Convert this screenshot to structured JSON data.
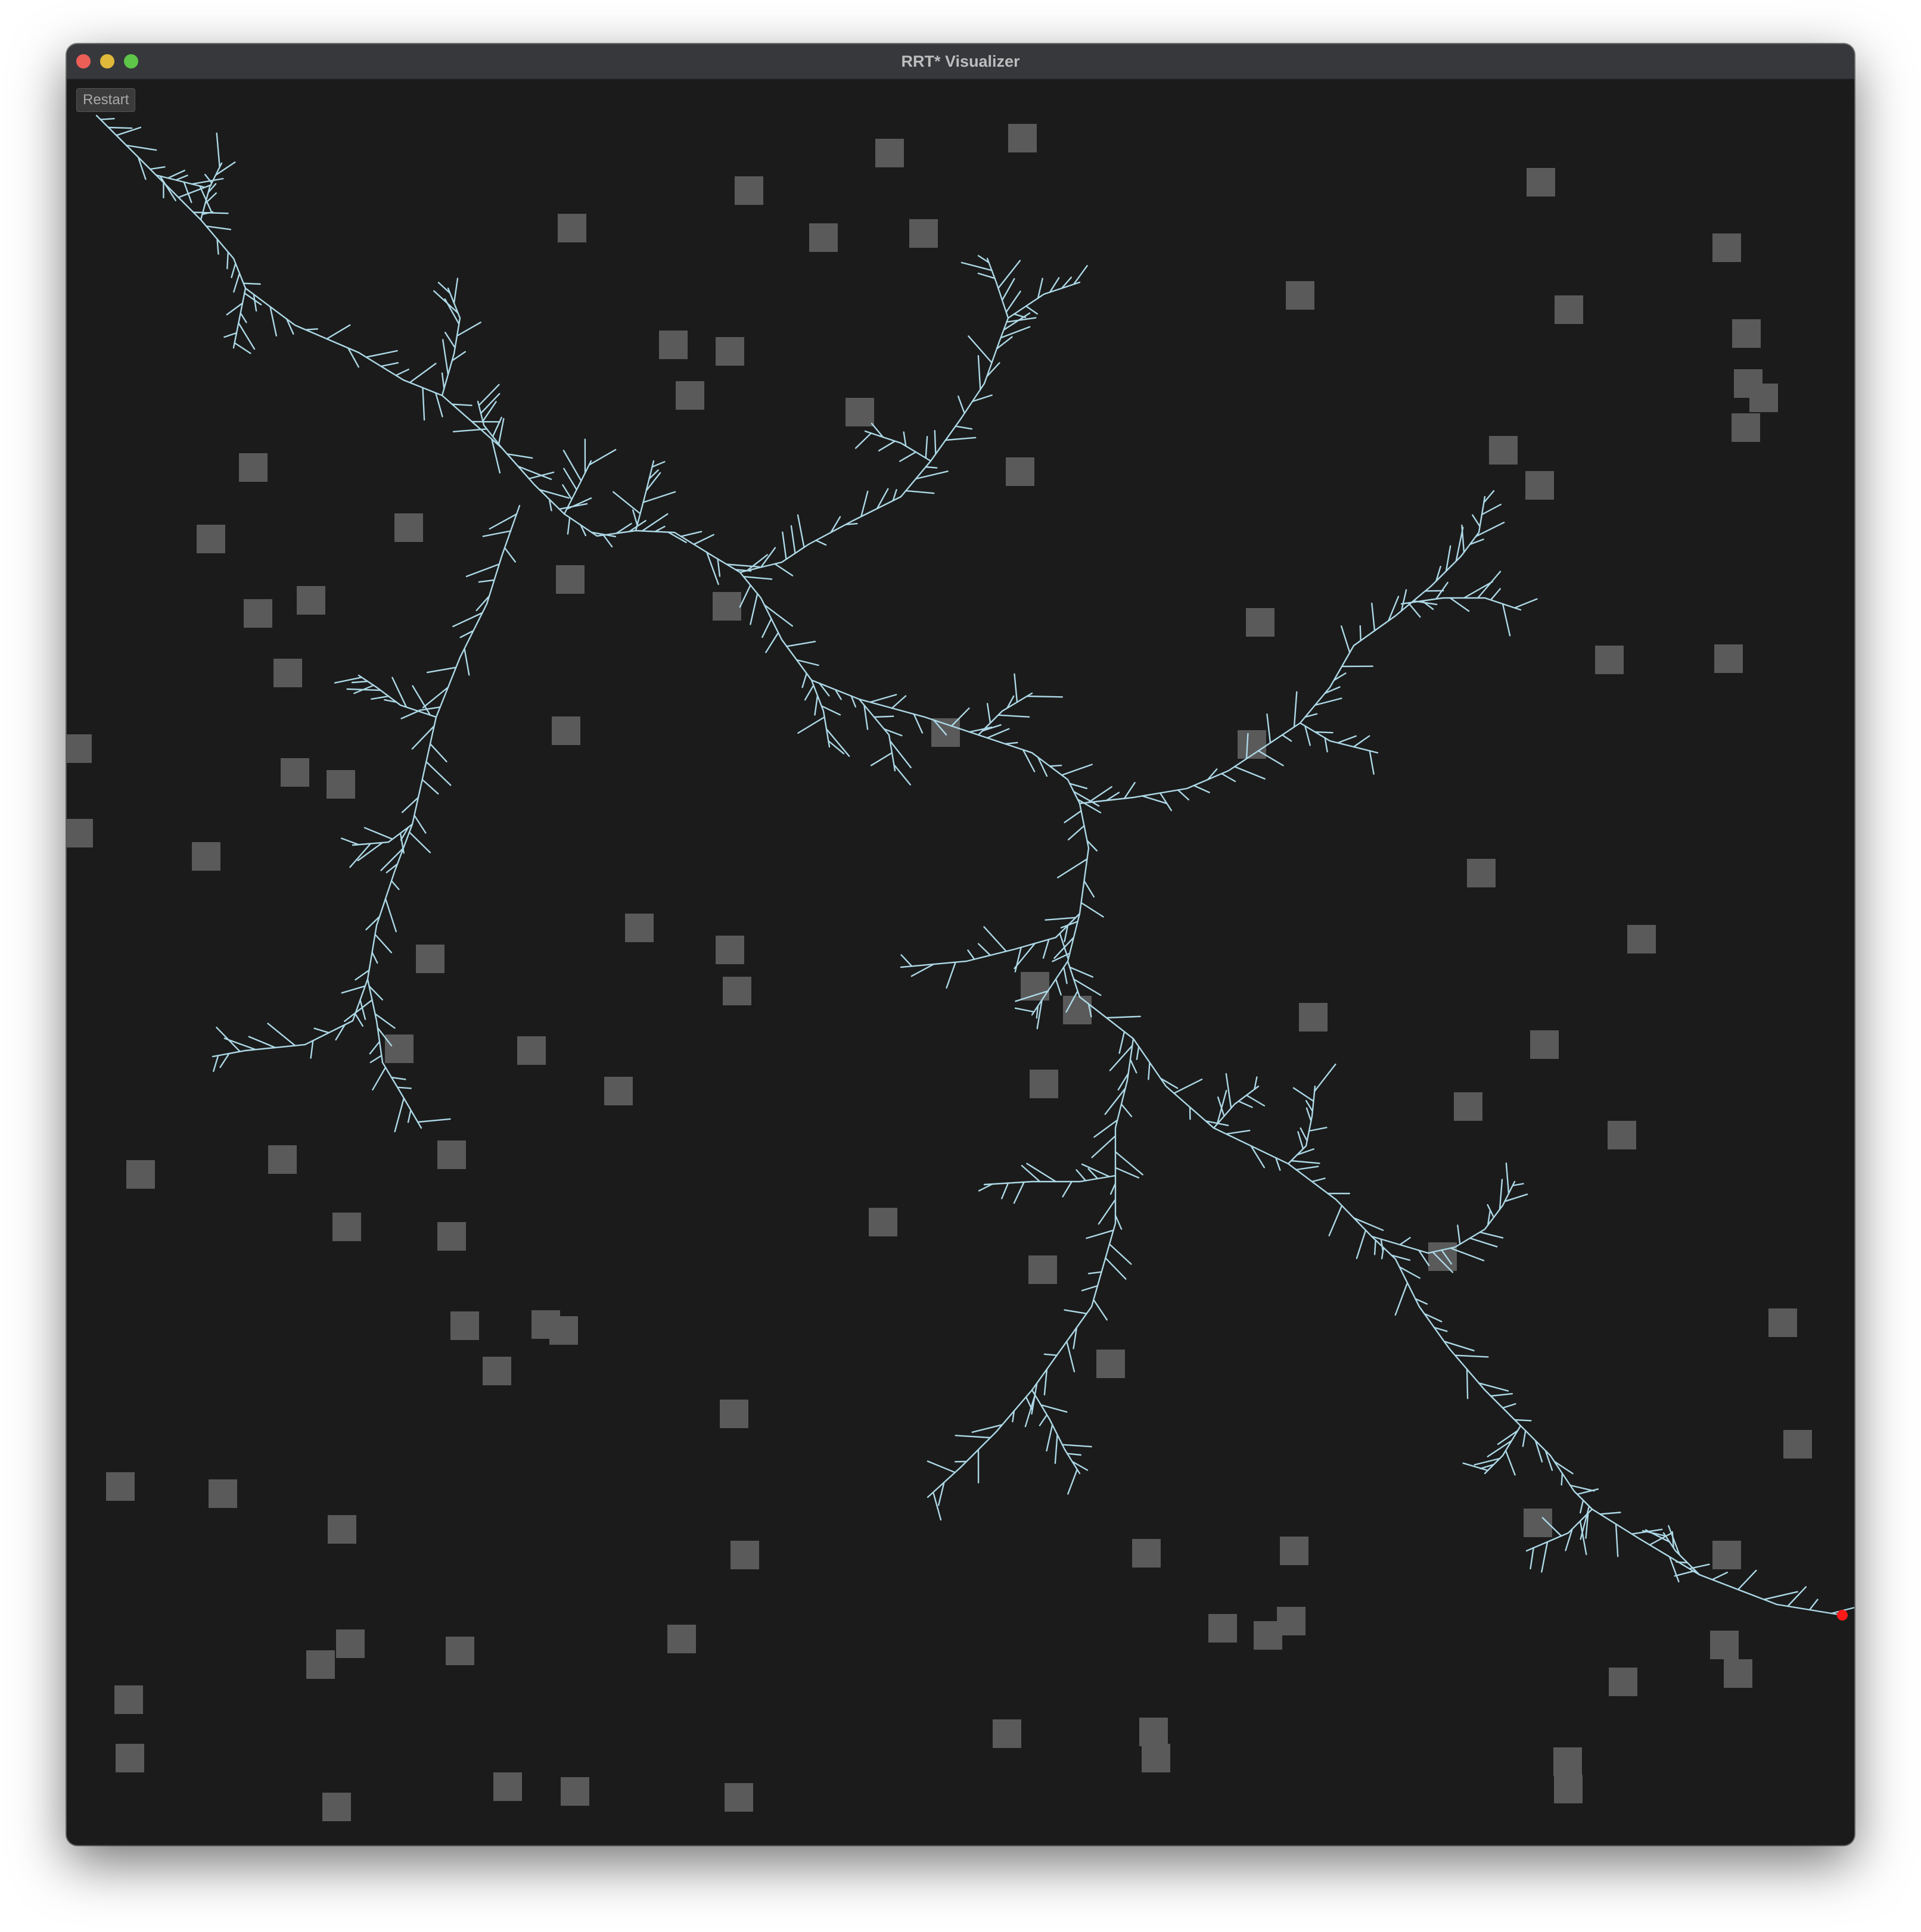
{
  "window": {
    "title": "RRT* Visualizer"
  },
  "toolbar": {
    "restart_label": "Restart"
  },
  "colors": {
    "background": "#1b1b1b",
    "obstacle": "#5a5a5a",
    "tree_edge": "#add8e6",
    "goal": "#ff1a1a",
    "titlebar": "#36383c"
  },
  "icons": {
    "close": "close-traffic-light-icon",
    "minimize": "minimize-traffic-light-icon",
    "maximize": "maximize-traffic-light-icon"
  }
}
